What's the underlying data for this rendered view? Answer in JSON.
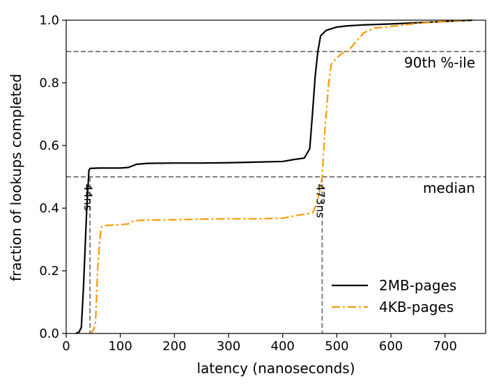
{
  "chart_data": {
    "type": "line",
    "title": "",
    "xlabel": "latency (nanoseconds)",
    "ylabel": "fraction of lookups completed",
    "xlim": [
      0,
      775
    ],
    "ylim": [
      0,
      1.0
    ],
    "xticks": [
      0,
      100,
      200,
      300,
      400,
      500,
      600,
      700
    ],
    "yticks": [
      0.0,
      0.2,
      0.4,
      0.6,
      0.8,
      1.0
    ],
    "xtick_labels": [
      "0",
      "100",
      "200",
      "300",
      "400",
      "500",
      "600",
      "700"
    ],
    "ytick_labels": [
      "0.0",
      "0.2",
      "0.4",
      "0.6",
      "0.8",
      "1.0"
    ],
    "grid": false,
    "legend_position": "lower-right",
    "series": [
      {
        "name": "2MB-pages",
        "color": "#000000",
        "style": "solid",
        "points": [
          [
            18,
            0
          ],
          [
            24,
            0.005
          ],
          [
            28,
            0.02
          ],
          [
            32,
            0.15
          ],
          [
            38,
            0.4
          ],
          [
            42,
            0.52
          ],
          [
            44,
            0.527
          ],
          [
            60,
            0.528
          ],
          [
            100,
            0.528
          ],
          [
            115,
            0.53
          ],
          [
            130,
            0.54
          ],
          [
            150,
            0.543
          ],
          [
            200,
            0.544
          ],
          [
            250,
            0.544
          ],
          [
            300,
            0.545
          ],
          [
            350,
            0.547
          ],
          [
            400,
            0.549
          ],
          [
            420,
            0.555
          ],
          [
            440,
            0.56
          ],
          [
            450,
            0.59
          ],
          [
            455,
            0.7
          ],
          [
            460,
            0.82
          ],
          [
            465,
            0.9
          ],
          [
            470,
            0.95
          ],
          [
            480,
            0.967
          ],
          [
            490,
            0.973
          ],
          [
            500,
            0.978
          ],
          [
            520,
            0.982
          ],
          [
            550,
            0.985
          ],
          [
            600,
            0.988
          ],
          [
            650,
            0.992
          ],
          [
            700,
            0.996
          ],
          [
            750,
            1.0
          ]
        ]
      },
      {
        "name": "4KB-pages",
        "color": "#ff9900",
        "style": "dashdot",
        "points": [
          [
            45,
            0
          ],
          [
            50,
            0.01
          ],
          [
            54,
            0.03
          ],
          [
            58,
            0.2
          ],
          [
            62,
            0.3
          ],
          [
            65,
            0.34
          ],
          [
            75,
            0.345
          ],
          [
            100,
            0.347
          ],
          [
            115,
            0.35
          ],
          [
            125,
            0.36
          ],
          [
            150,
            0.362
          ],
          [
            200,
            0.363
          ],
          [
            250,
            0.365
          ],
          [
            300,
            0.366
          ],
          [
            350,
            0.366
          ],
          [
            400,
            0.368
          ],
          [
            430,
            0.378
          ],
          [
            455,
            0.385
          ],
          [
            462,
            0.41
          ],
          [
            468,
            0.45
          ],
          [
            473,
            0.5
          ],
          [
            478,
            0.65
          ],
          [
            485,
            0.8
          ],
          [
            490,
            0.86
          ],
          [
            500,
            0.88
          ],
          [
            510,
            0.895
          ],
          [
            520,
            0.9
          ],
          [
            535,
            0.93
          ],
          [
            550,
            0.96
          ],
          [
            570,
            0.975
          ],
          [
            600,
            0.98
          ],
          [
            650,
            0.99
          ],
          [
            700,
            0.997
          ],
          [
            745,
            1.0
          ]
        ]
      }
    ],
    "hlines": [
      {
        "y": 0.9,
        "label": "90th %-ile"
      },
      {
        "y": 0.5,
        "label": "median"
      }
    ],
    "vlines": [
      {
        "x": 44,
        "y_top": 0.5,
        "label": "44ns"
      },
      {
        "x": 473,
        "y_top": 0.5,
        "label": "473ns"
      }
    ],
    "reference_line_color": "#808080"
  }
}
